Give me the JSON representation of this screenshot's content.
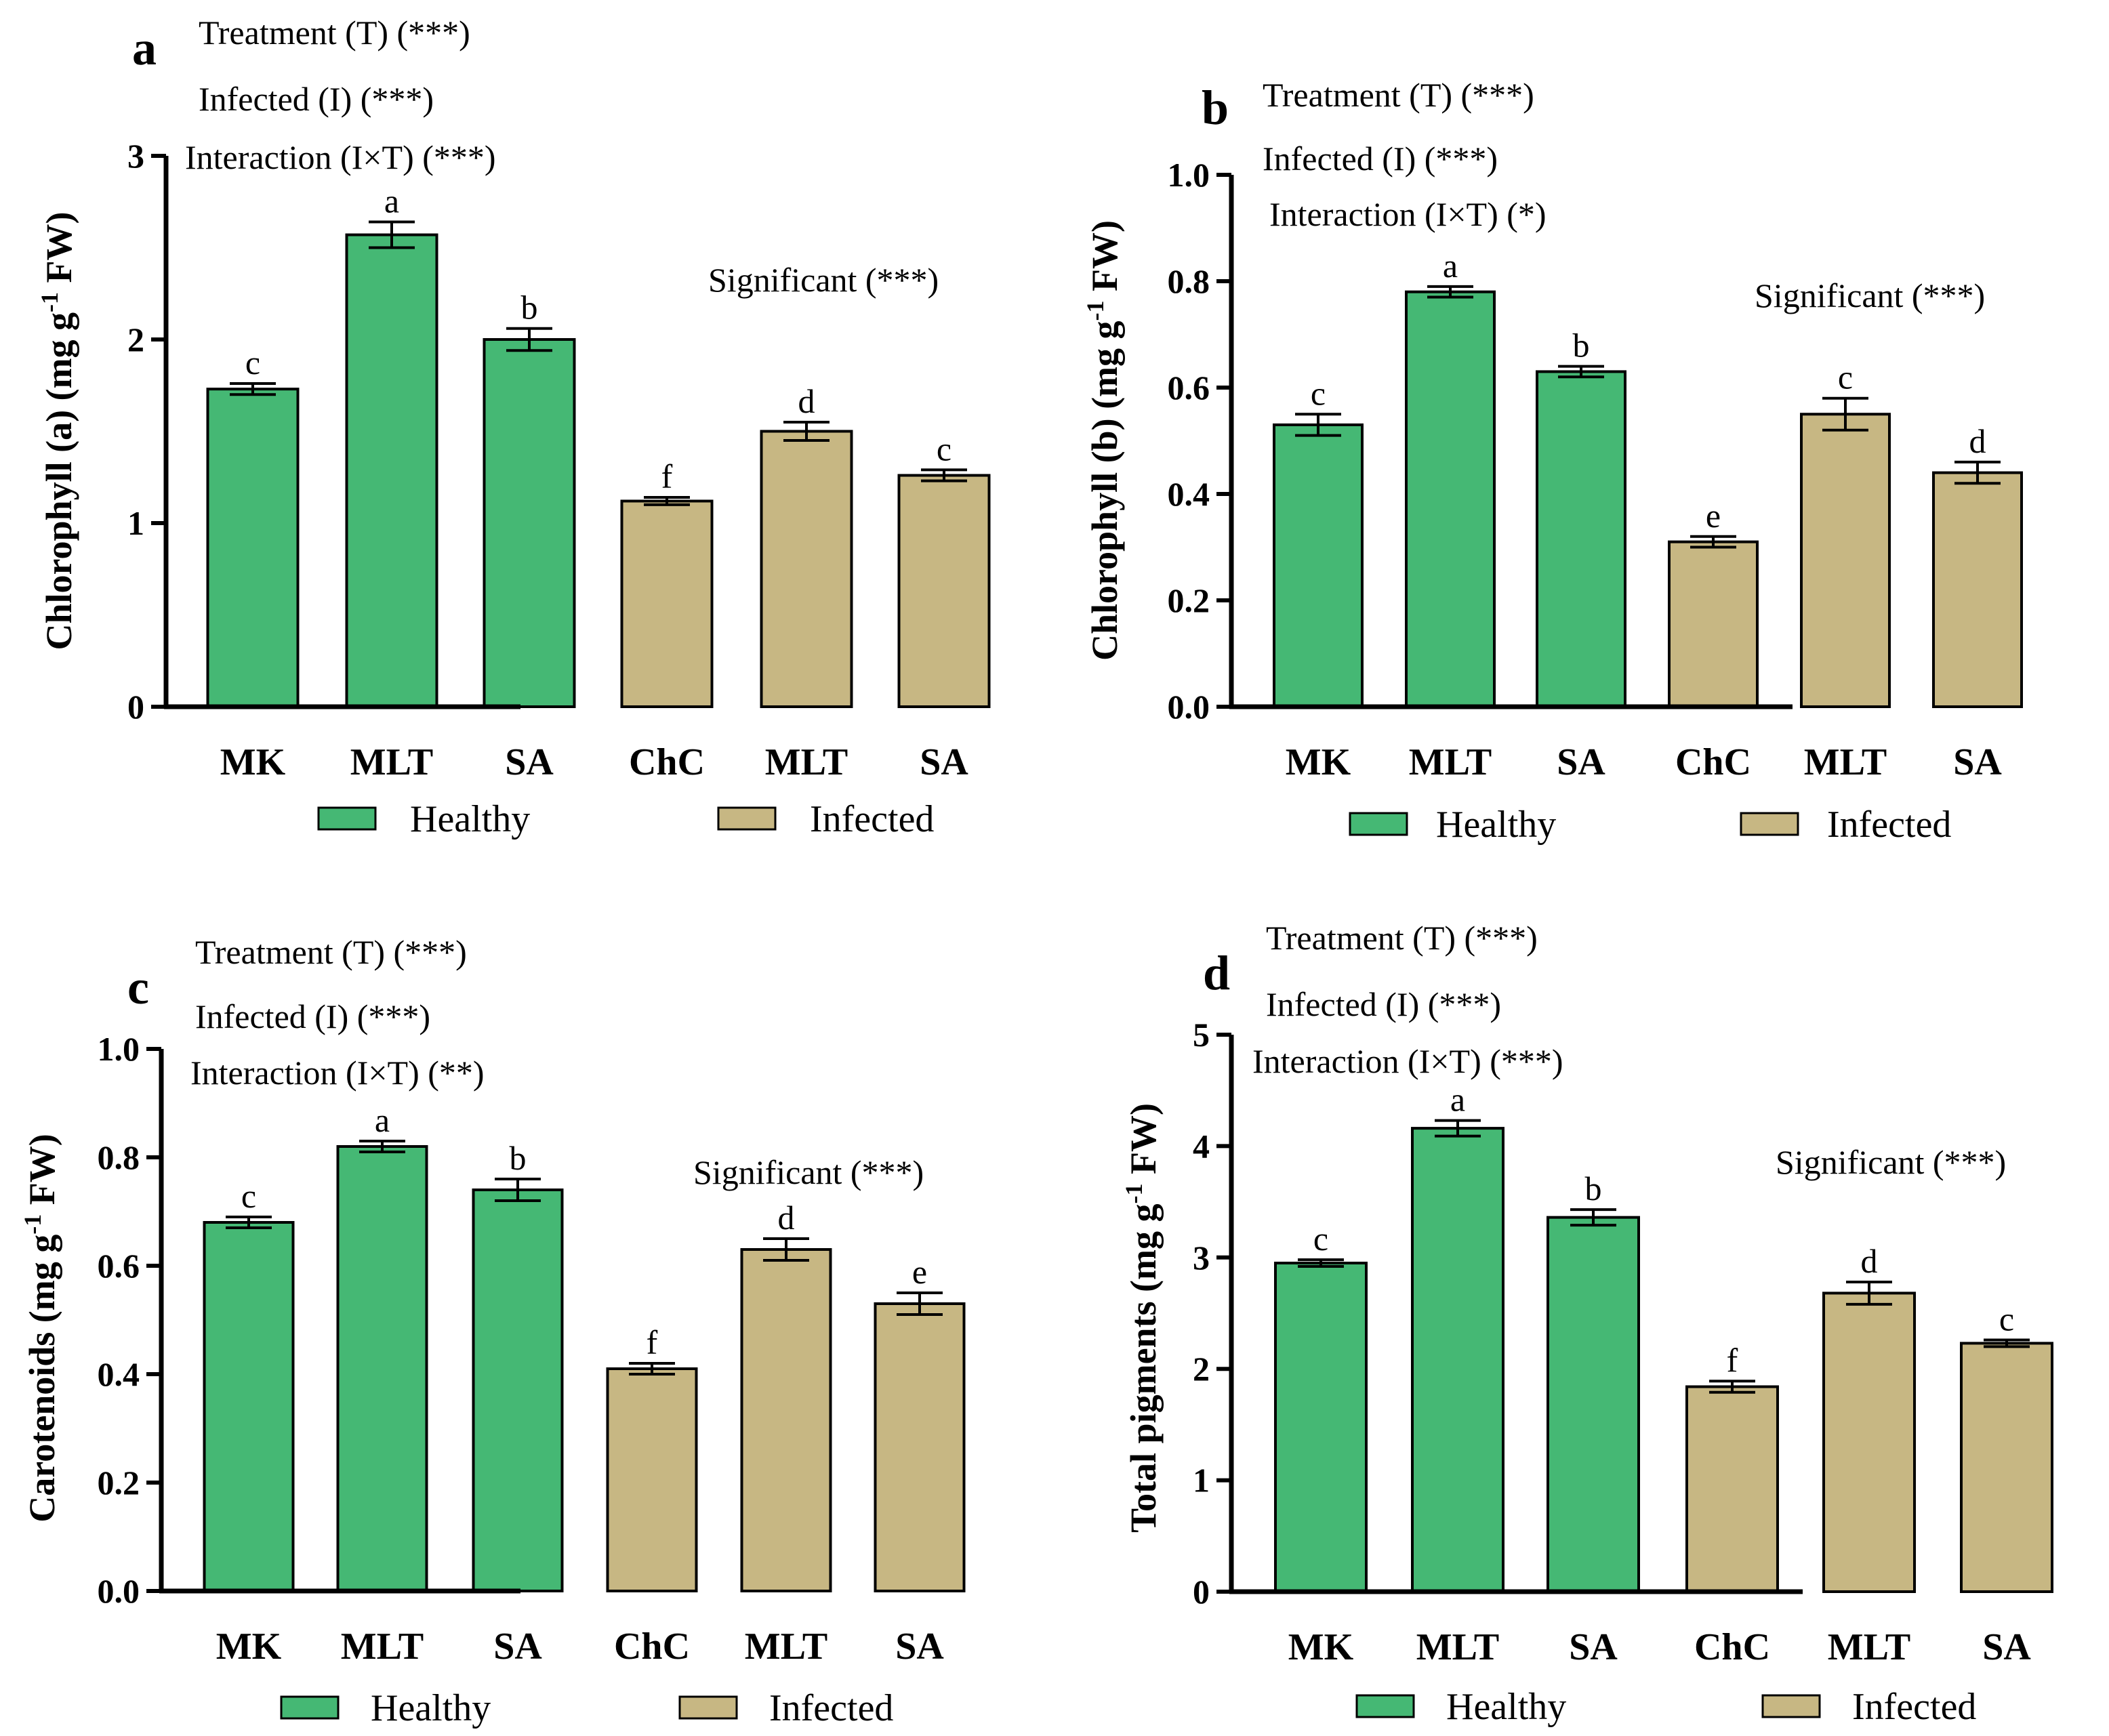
{
  "colors": {
    "healthy": "#45b874",
    "infected": "#c7b783",
    "axis": "#000000"
  },
  "chart_data": [
    {
      "type": "bar",
      "panel": "a",
      "ylabel_main": "Chlorophyll (a) (mg g",
      "ylabel_sup": "-1",
      "ylabel_end": " FW)",
      "ylim": [
        0,
        3
      ],
      "yticks": [
        "0",
        "1",
        "2",
        "3"
      ],
      "categories": [
        "MK",
        "MLT",
        "SA",
        "ChC",
        "MLT",
        "SA"
      ],
      "groups": [
        "healthy",
        "healthy",
        "healthy",
        "infected",
        "infected",
        "infected"
      ],
      "values": [
        1.73,
        2.57,
        2.0,
        1.12,
        1.5,
        1.26
      ],
      "errors": [
        0.03,
        0.07,
        0.06,
        0.02,
        0.05,
        0.03
      ],
      "letters": [
        "c",
        "a",
        "b",
        "f",
        "d",
        "c"
      ],
      "stats": [
        "Treatment (T) (***)",
        "Infected (I) (***)",
        "Interaction (I×T) (***)"
      ],
      "significant": "Significant (***)",
      "legend": [
        "Healthy",
        "Infected"
      ]
    },
    {
      "type": "bar",
      "panel": "b",
      "ylabel_main": "Chlorophyll (b) (mg g",
      "ylabel_sup": "-1",
      "ylabel_end": " FW)",
      "ylim": [
        0,
        1.0
      ],
      "yticks": [
        "0.0",
        "0.2",
        "0.4",
        "0.6",
        "0.8",
        "1.0"
      ],
      "categories": [
        "MK",
        "MLT",
        "SA",
        "ChC",
        "MLT",
        "SA"
      ],
      "groups": [
        "healthy",
        "healthy",
        "healthy",
        "infected",
        "infected",
        "infected"
      ],
      "values": [
        0.53,
        0.78,
        0.63,
        0.31,
        0.55,
        0.44
      ],
      "errors": [
        0.02,
        0.01,
        0.01,
        0.01,
        0.03,
        0.02
      ],
      "letters": [
        "c",
        "a",
        "b",
        "e",
        "c",
        "d"
      ],
      "stats": [
        "Treatment (T) (***)",
        "Infected (I) (***)",
        "Interaction (I×T) (*)"
      ],
      "significant": "Significant (***)",
      "legend": [
        "Healthy",
        "Infected"
      ]
    },
    {
      "type": "bar",
      "panel": "c",
      "ylabel_main": "Carotenoids (mg g",
      "ylabel_sup": "-1",
      "ylabel_end": " FW)",
      "ylim": [
        0,
        1.0
      ],
      "yticks": [
        "0.0",
        "0.2",
        "0.4",
        "0.6",
        "0.8",
        "1.0"
      ],
      "categories": [
        "MK",
        "MLT",
        "SA",
        "ChC",
        "MLT",
        "SA"
      ],
      "groups": [
        "healthy",
        "healthy",
        "healthy",
        "infected",
        "infected",
        "infected"
      ],
      "values": [
        0.68,
        0.82,
        0.74,
        0.41,
        0.63,
        0.53
      ],
      "errors": [
        0.01,
        0.01,
        0.02,
        0.01,
        0.02,
        0.02
      ],
      "letters": [
        "c",
        "a",
        "b",
        "f",
        "d",
        "e"
      ],
      "stats": [
        "Treatment (T) (***)",
        "Infected (I) (***)",
        "Interaction (I×T) (**)"
      ],
      "significant": "Significant (***)",
      "legend": [
        "Healthy",
        "Infected"
      ]
    },
    {
      "type": "bar",
      "panel": "d",
      "ylabel_main": "Total pigments (mg g",
      "ylabel_sup": "-1",
      "ylabel_end": " FW)",
      "ylim": [
        0,
        5
      ],
      "yticks": [
        "0",
        "1",
        "2",
        "3",
        "4",
        "5"
      ],
      "categories": [
        "MK",
        "MLT",
        "SA",
        "ChC",
        "MLT",
        "SA"
      ],
      "groups": [
        "healthy",
        "healthy",
        "healthy",
        "infected",
        "infected",
        "infected"
      ],
      "values": [
        2.95,
        4.16,
        3.36,
        1.84,
        2.68,
        2.23
      ],
      "errors": [
        0.03,
        0.07,
        0.07,
        0.05,
        0.1,
        0.03
      ],
      "letters": [
        "c",
        "a",
        "b",
        "f",
        "d",
        "c"
      ],
      "stats": [
        "Treatment (T) (***)",
        "Infected (I) (***)",
        "Interaction (I×T) (***)"
      ],
      "significant": "Significant (***)",
      "legend": [
        "Healthy",
        "Infected"
      ]
    }
  ]
}
